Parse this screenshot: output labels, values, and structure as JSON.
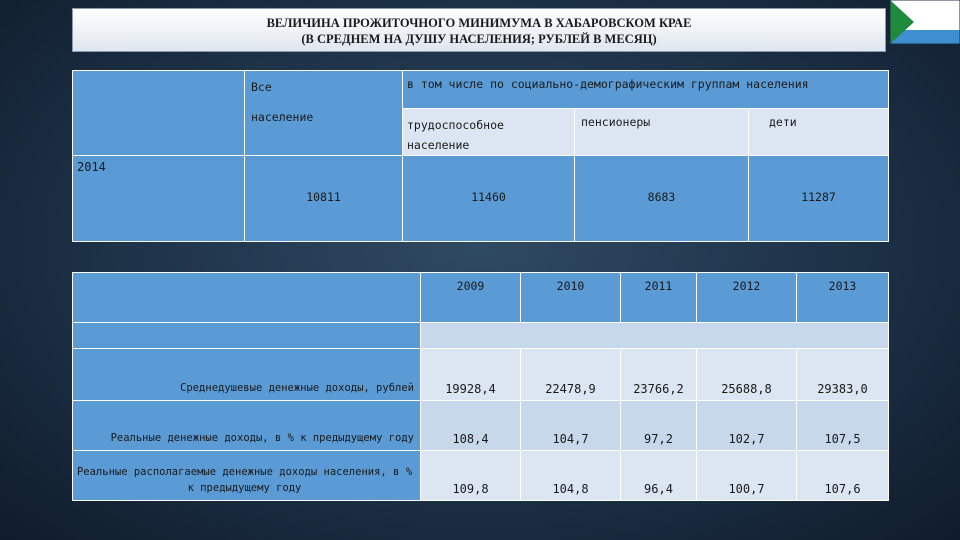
{
  "title": {
    "line1": "ВЕЛИЧИНА ПРОЖИТОЧНОГО МИНИМУМА  В ХАБАРОВСКОМ КРАЕ",
    "line2": "(В СРЕДНЕМ НА ДУШУ НАСЕЛЕНИЯ; РУБЛЕЙ В МЕСЯЦ)"
  },
  "colors": {
    "header_blue": "#5b9bd5",
    "row_light": "#dbe6f2",
    "flag_green": "#1e8a3c",
    "flag_blue": "#3f8fd0"
  },
  "table1": {
    "col_all_line1": "Все",
    "col_all_line2": "население",
    "group_header": "в том числе по социально-демографическим группам населения",
    "sub_working": "трудоспособное население",
    "sub_pensioners": "пенсионеры",
    "sub_children": "дети",
    "year": "2014",
    "val_all": "10811",
    "val_working": "11460",
    "val_pensioners": "8683",
    "val_children": "11287"
  },
  "table2": {
    "years": [
      "2009",
      "2010",
      "2011",
      "2012",
      "2013"
    ],
    "rows": [
      {
        "label": "Среднедушевые денежные доходы, рублей",
        "values": [
          "19928,4",
          "22478,9",
          "23766,2",
          "25688,8",
          "29383,0"
        ]
      },
      {
        "label": "Реальные денежные доходы, в % к предыдущему году",
        "values": [
          "108,4",
          "104,7",
          "97,2",
          "102,7",
          "107,5"
        ]
      },
      {
        "label": "Реальные располагаемые денежные доходы населения, в % к предыдущему году",
        "values": [
          "109,8",
          "104,8",
          "96,4",
          "100,7",
          "107,6"
        ]
      }
    ]
  }
}
